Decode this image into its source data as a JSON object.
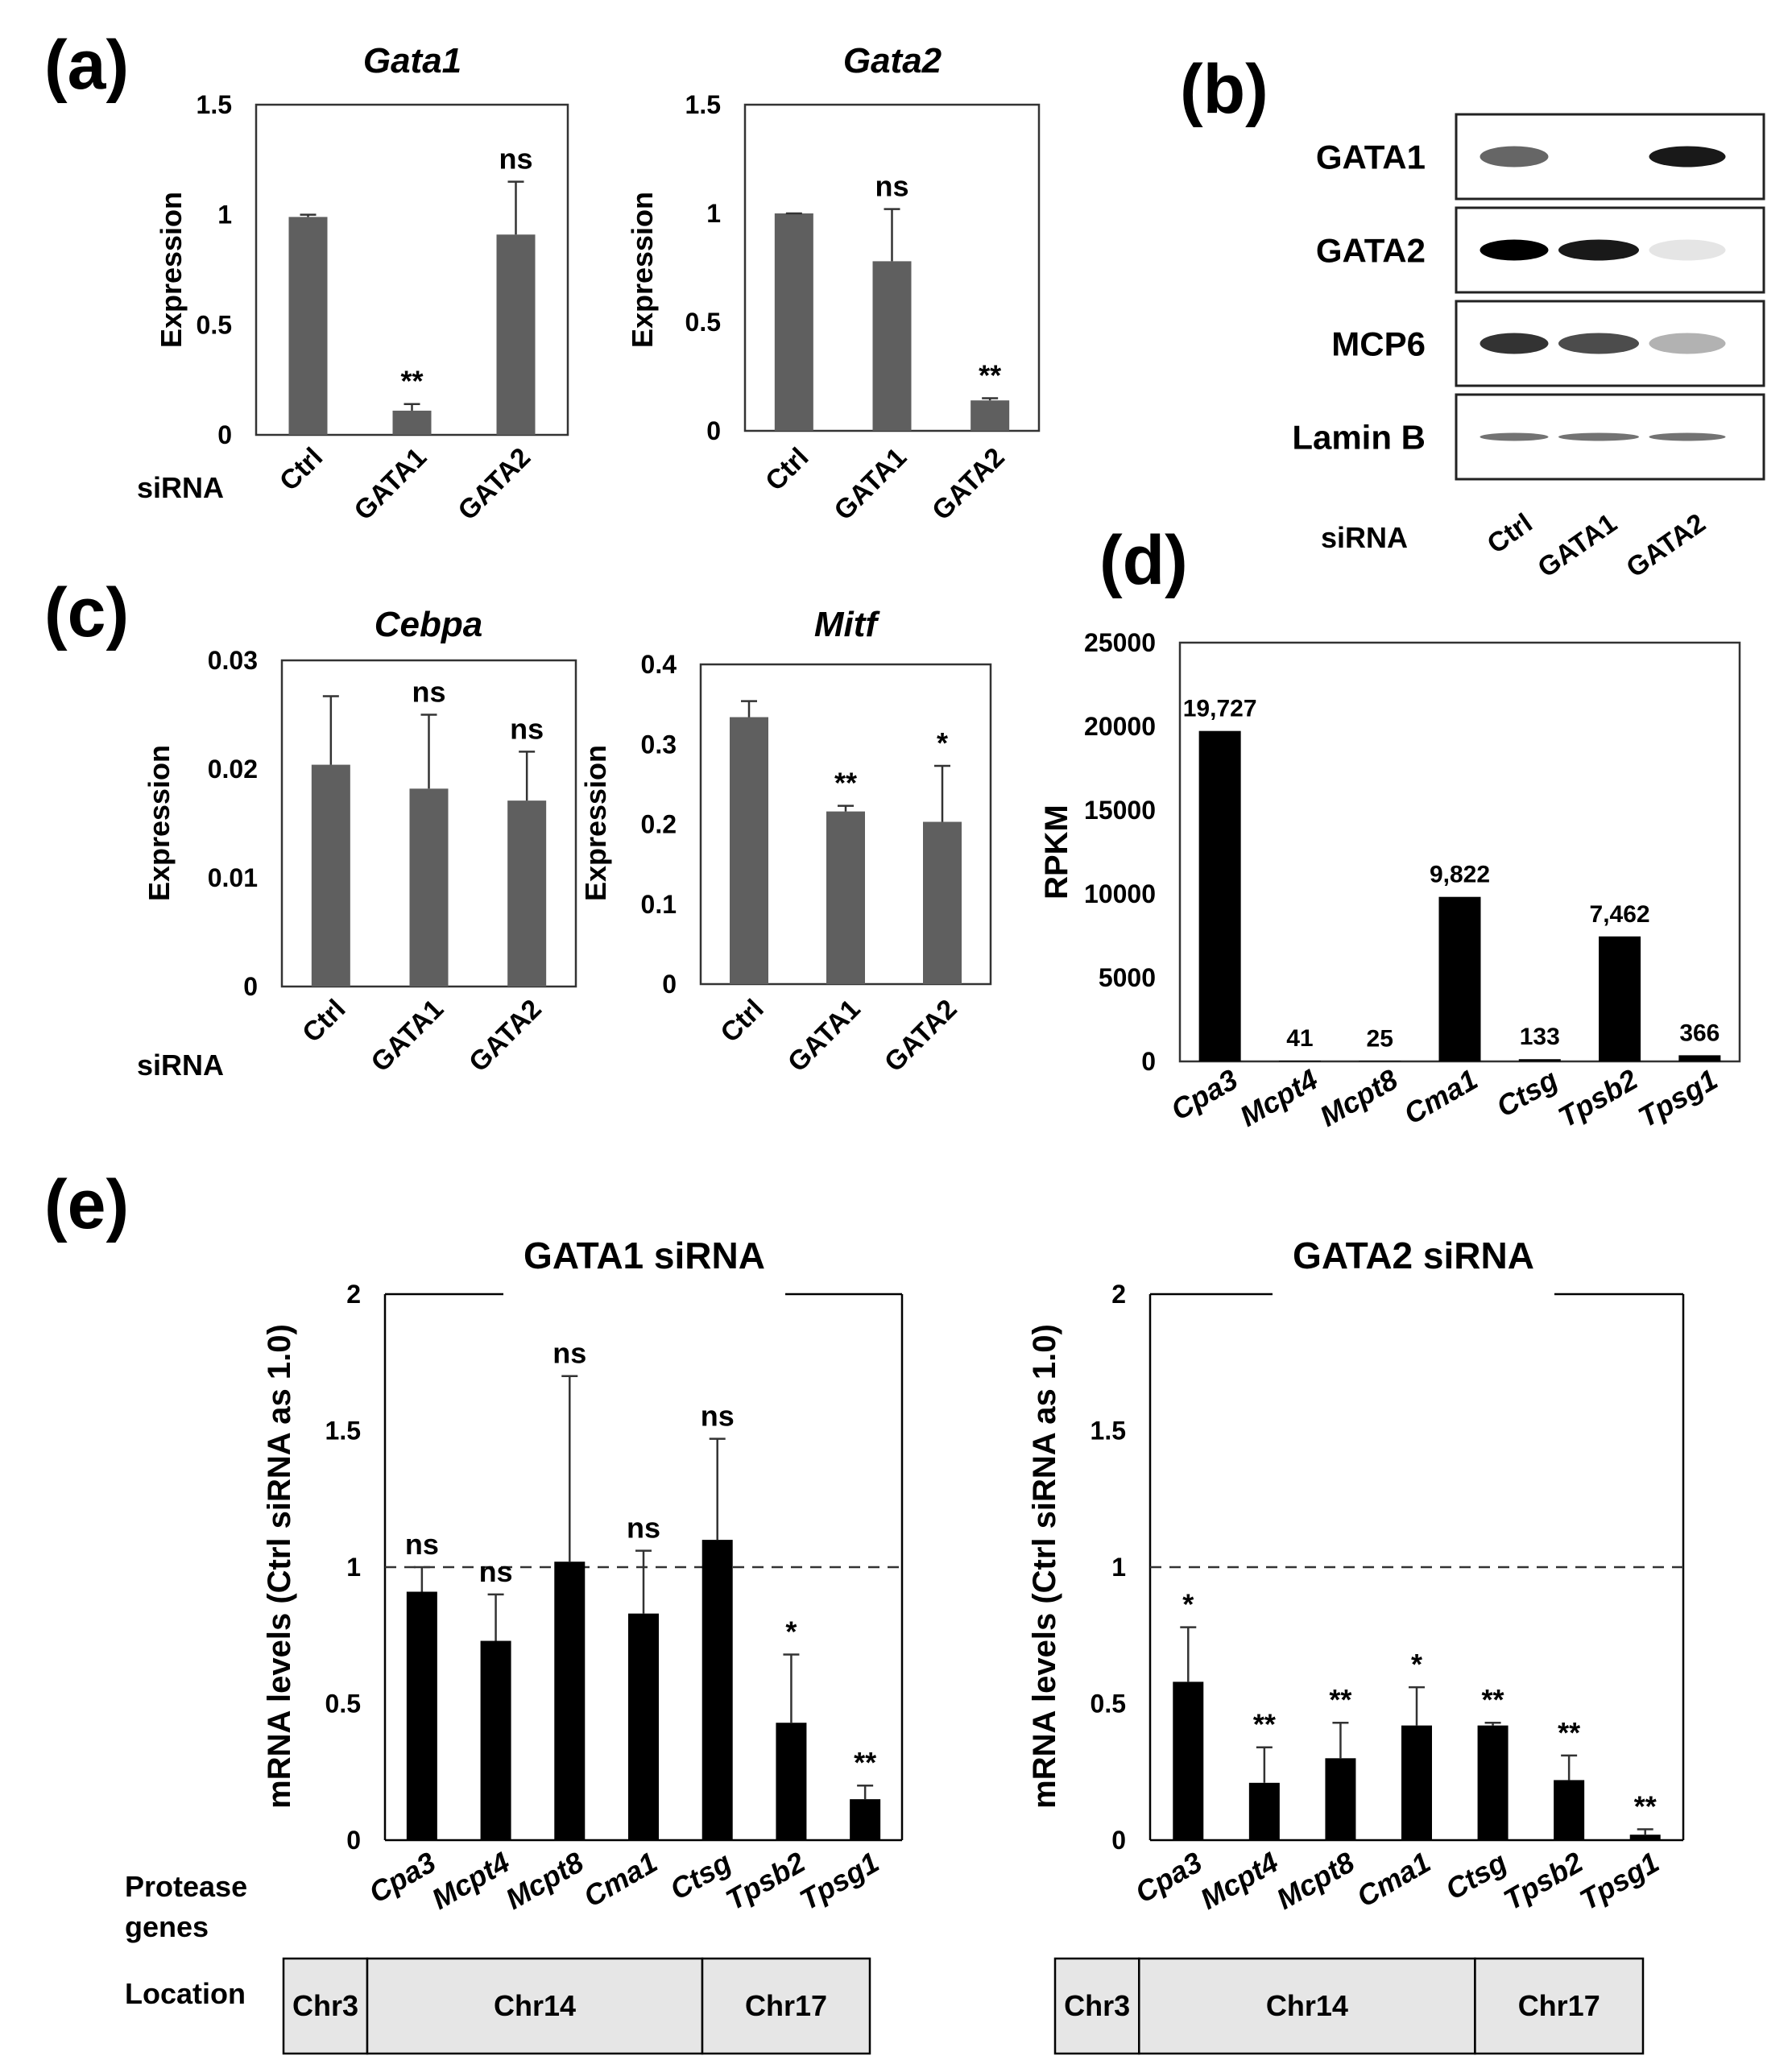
{
  "panel_labels": {
    "a": "(a)",
    "b": "(b)",
    "c": "(c)",
    "d": "(d)",
    "e": "(e)"
  },
  "sirna_label": "siRNA",
  "chart_data": [
    {
      "id": "a1",
      "type": "bar",
      "title": "Gata1",
      "xlabel": "",
      "ylabel": "Expression",
      "ylim": [
        0,
        1.5
      ],
      "yticks": [
        0,
        0.5,
        1,
        1.5
      ],
      "ytick_labels": [
        "0",
        "0.5",
        "1",
        "1.5"
      ],
      "categories": [
        "Ctrl",
        "GATA1",
        "GATA2"
      ],
      "values": [
        0.99,
        0.11,
        0.91
      ],
      "errors": [
        0.01,
        0.03,
        0.24
      ],
      "significance": [
        "",
        "**",
        "ns"
      ],
      "bar_color": "#5f5f5f"
    },
    {
      "id": "a2",
      "type": "bar",
      "title": "Gata2",
      "xlabel": "",
      "ylabel": "Expression",
      "ylim": [
        0,
        1.5
      ],
      "yticks": [
        0,
        0.5,
        1,
        1.5
      ],
      "ytick_labels": [
        "0",
        "0.5",
        "1",
        "1.5"
      ],
      "categories": [
        "Ctrl",
        "GATA1",
        "GATA2"
      ],
      "values": [
        1.0,
        0.78,
        0.14
      ],
      "errors": [
        0.0,
        0.24,
        0.01
      ],
      "significance": [
        "",
        "ns",
        "**"
      ],
      "bar_color": "#5f5f5f"
    },
    {
      "id": "c1",
      "type": "bar",
      "title": "Cebpa",
      "xlabel": "",
      "ylabel": "Expression",
      "ylim": [
        0,
        0.03
      ],
      "yticks": [
        0,
        0.01,
        0.02,
        0.03
      ],
      "ytick_labels": [
        "0",
        "0.01",
        "0.02",
        "0.03"
      ],
      "categories": [
        "Ctrl",
        "GATA1",
        "GATA2"
      ],
      "values": [
        0.0204,
        0.0182,
        0.0171
      ],
      "errors": [
        0.0063,
        0.0068,
        0.0045
      ],
      "significance": [
        "",
        "ns",
        "ns"
      ],
      "bar_color": "#5f5f5f"
    },
    {
      "id": "c2",
      "type": "bar",
      "title": "Mitf",
      "xlabel": "",
      "ylabel": "Expression",
      "ylim": [
        0,
        0.4
      ],
      "yticks": [
        0,
        0.1,
        0.2,
        0.3,
        0.4
      ],
      "ytick_labels": [
        "0",
        "0.1",
        "0.2",
        "0.3",
        "0.4"
      ],
      "categories": [
        "Ctrl",
        "GATA1",
        "GATA2"
      ],
      "values": [
        0.334,
        0.216,
        0.203
      ],
      "errors": [
        0.02,
        0.007,
        0.07
      ],
      "significance": [
        "",
        "**",
        "*"
      ],
      "bar_color": "#5f5f5f"
    },
    {
      "id": "d",
      "type": "bar",
      "title": "",
      "xlabel": "",
      "ylabel": "RPKM",
      "ylim": [
        0,
        25000
      ],
      "yticks": [
        0,
        5000,
        10000,
        15000,
        20000,
        25000
      ],
      "ytick_labels": [
        "0",
        "5000",
        "10000",
        "15000",
        "20000",
        "25000"
      ],
      "categories": [
        "Cpa3",
        "Mcpt4",
        "Mcpt8",
        "Cma1",
        "Ctsg",
        "Tpsb2",
        "Tpsg1"
      ],
      "values": [
        19727,
        41,
        25,
        9822,
        133,
        7462,
        366
      ],
      "data_labels": [
        "19,727",
        "41",
        "25",
        "9,822",
        "133",
        "7,462",
        "366"
      ],
      "bar_color": "#000000"
    },
    {
      "id": "e1",
      "type": "bar",
      "title": "GATA1 siRNA",
      "xlabel": "Protease genes",
      "ylabel": "mRNA levels (Ctrl siRNA as 1.0)",
      "ylim": [
        0,
        2
      ],
      "yticks": [
        0,
        0.5,
        1,
        1.5,
        2
      ],
      "ytick_labels": [
        "0",
        "0.5",
        "1",
        "1.5",
        "2"
      ],
      "reference_line": 1,
      "categories": [
        "Cpa3",
        "Mcpt4",
        "Mcpt8",
        "Cma1",
        "Ctsg",
        "Tpsb2",
        "Tpsg1"
      ],
      "values": [
        0.91,
        0.73,
        1.02,
        0.83,
        1.1,
        0.43,
        0.15
      ],
      "errors": [
        0.09,
        0.17,
        0.68,
        0.23,
        0.37,
        0.25,
        0.05
      ],
      "significance": [
        "ns",
        "ns",
        "ns",
        "ns",
        "ns",
        "*",
        "**"
      ],
      "bar_color": "#000000"
    },
    {
      "id": "e2",
      "type": "bar",
      "title": "GATA2 siRNA",
      "xlabel": "",
      "ylabel": "mRNA levels (Ctrl siRNA as 1.0)",
      "ylim": [
        0,
        2
      ],
      "yticks": [
        0,
        0.5,
        1,
        1.5,
        2
      ],
      "ytick_labels": [
        "0",
        "0.5",
        "1",
        "1.5",
        "2"
      ],
      "reference_line": 1,
      "categories": [
        "Cpa3",
        "Mcpt4",
        "Mcpt8",
        "Cma1",
        "Ctsg",
        "Tpsb2",
        "Tpsg1"
      ],
      "values": [
        0.58,
        0.21,
        0.3,
        0.42,
        0.42,
        0.22,
        0.02
      ],
      "errors": [
        0.2,
        0.13,
        0.13,
        0.14,
        0.01,
        0.09,
        0.02
      ],
      "significance": [
        "*",
        "**",
        "**",
        "*",
        "**",
        "**",
        "**"
      ],
      "bar_color": "#000000"
    }
  ],
  "western_blot": {
    "rows": [
      "GATA1",
      "GATA2",
      "MCP6",
      "Lamin B"
    ],
    "lanes": [
      "Ctrl",
      "GATA1",
      "GATA2"
    ],
    "band_intensity": [
      [
        0.6,
        0.0,
        0.9
      ],
      [
        1.0,
        0.9,
        0.1
      ],
      [
        0.8,
        0.7,
        0.3
      ],
      [
        0.55,
        0.55,
        0.55
      ]
    ]
  },
  "panel_e": {
    "protease_genes_label": [
      "Protease",
      "genes"
    ],
    "location_label": "Location",
    "location_segments": [
      {
        "label": "Chr3",
        "genes": 1
      },
      {
        "label": "Chr14",
        "genes": 4
      },
      {
        "label": "Chr17",
        "genes": 2
      }
    ]
  }
}
